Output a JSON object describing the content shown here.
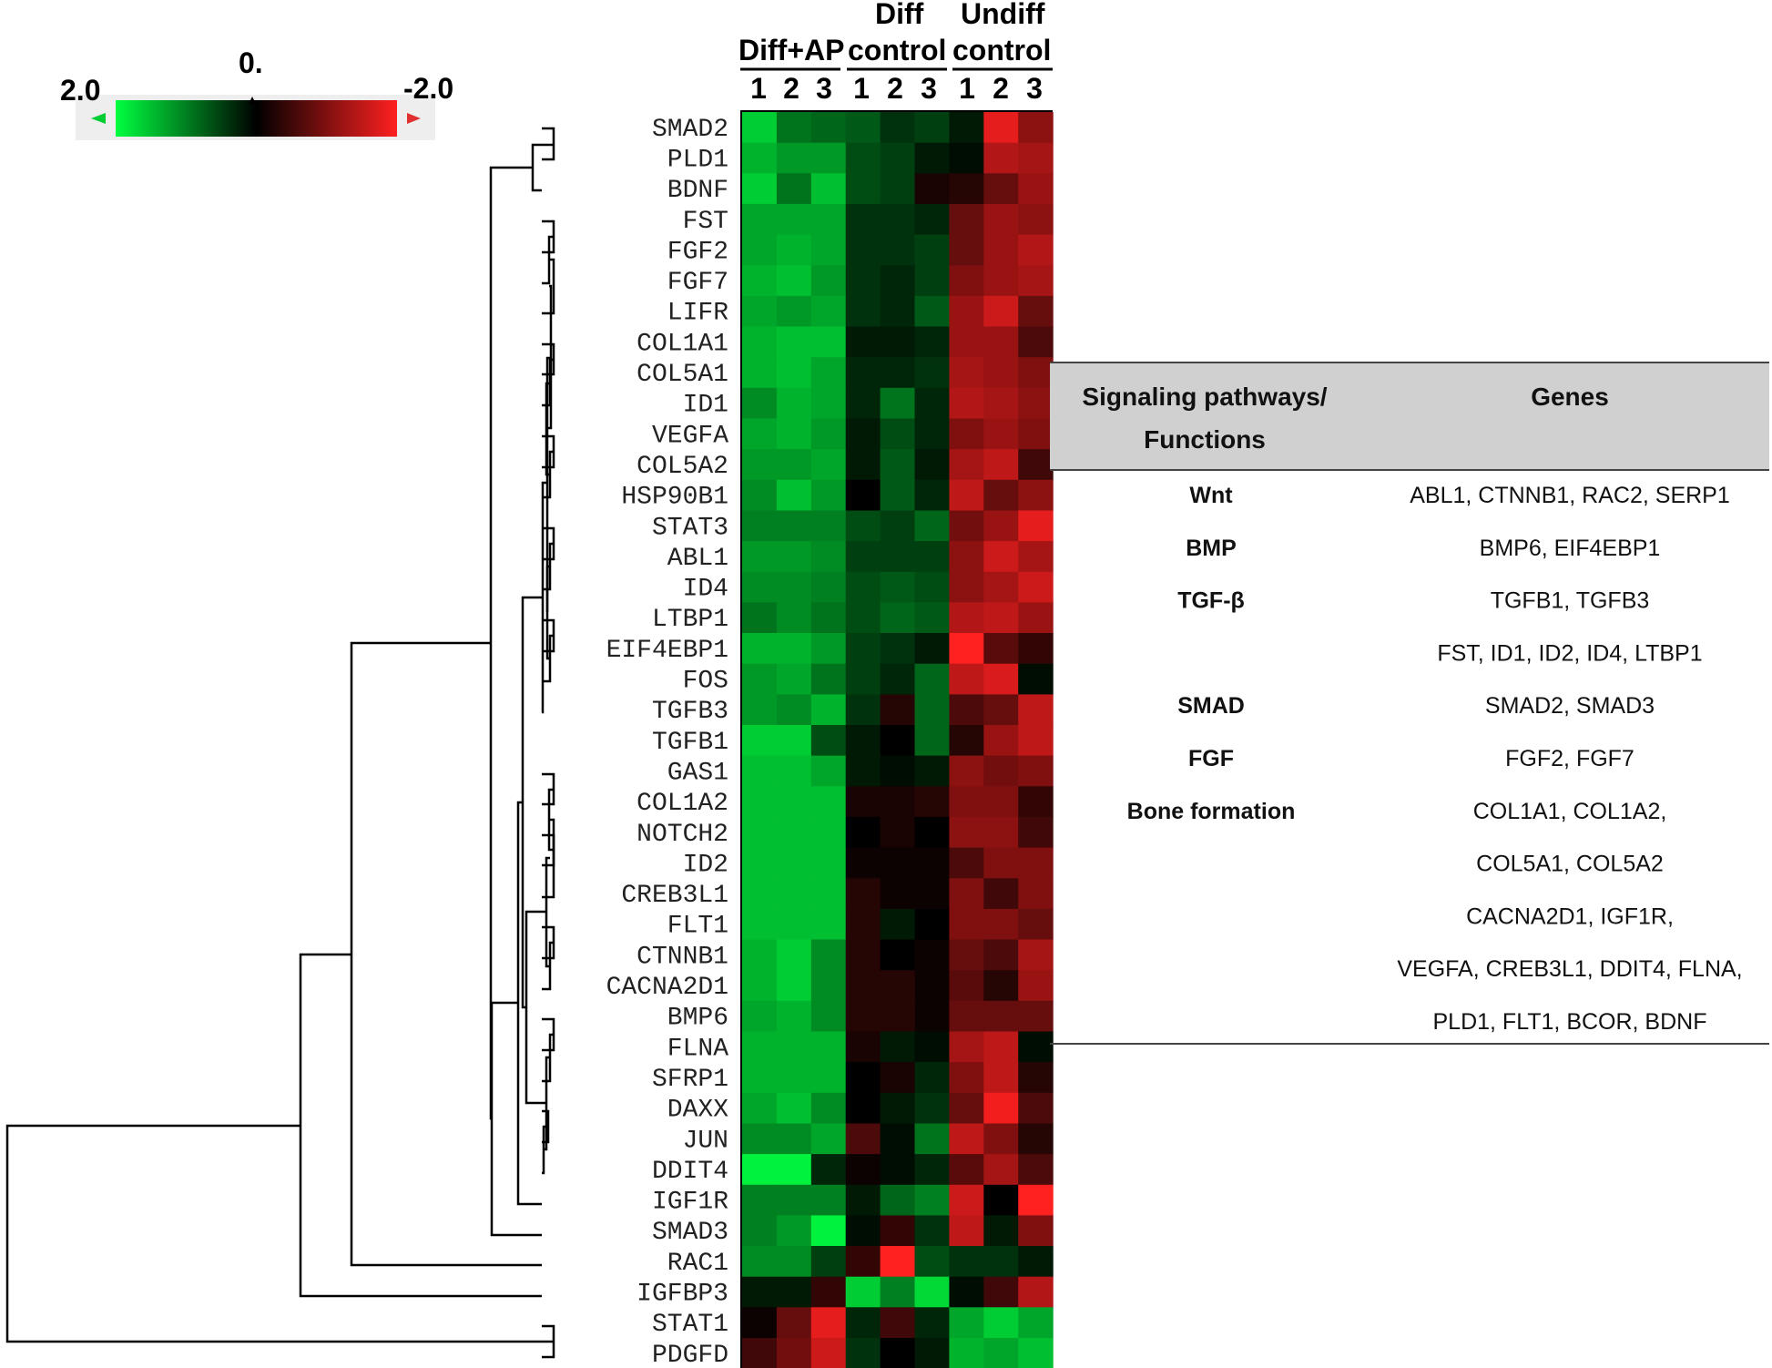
{
  "chart_data": {
    "type": "heatmap",
    "title": "",
    "color_scale": {
      "label_min": "2.0",
      "label_mid": "0.",
      "label_max": "-2.0",
      "low_color": "#00ff40",
      "mid_color": "#000000",
      "high_color": "#ff2020"
    },
    "groups": [
      {
        "name_line1": "",
        "name_line2": "Diff+AP",
        "replicates": [
          "1",
          "2",
          "3"
        ]
      },
      {
        "name_line1": "Diff",
        "name_line2": "control",
        "replicates": [
          "1",
          "2",
          "3"
        ]
      },
      {
        "name_line1": "Undiff",
        "name_line2": "control",
        "replicates": [
          "1",
          "2",
          "3"
        ]
      }
    ],
    "genes": [
      "SMAD2",
      "PLD1",
      "BDNF",
      "FST",
      "FGF2",
      "FGF7",
      "LIFR",
      "COL1A1",
      "COL5A1",
      "ID1",
      "VEGFA",
      "COL5A2",
      "HSP90B1",
      "STAT3",
      "ABL1",
      "ID4",
      "LTBP1",
      "EIF4EBP1",
      "FOS",
      "TGFB3",
      "TGFB1",
      "GAS1",
      "COL1A2",
      "NOTCH2",
      "ID2",
      "CREB3L1",
      "FLT1",
      "CTNNB1",
      "CACNA2D1",
      "BMP6",
      "FLNA",
      "SFRP1",
      "DAXX",
      "JUN",
      "DDIT4",
      "IGF1R",
      "SMAD3",
      "RAC1",
      "IGFBP3",
      "STAT1",
      "PDGFD"
    ],
    "values": [
      [
        1.6,
        0.9,
        0.8,
        0.7,
        0.4,
        0.5,
        0.2,
        -1.8,
        -1.1
      ],
      [
        1.4,
        1.2,
        1.2,
        0.6,
        0.5,
        0.2,
        0.1,
        -1.4,
        -1.3
      ],
      [
        1.6,
        0.9,
        1.5,
        0.6,
        0.5,
        -0.2,
        -0.3,
        -0.8,
        -1.2
      ],
      [
        1.3,
        1.3,
        1.3,
        0.4,
        0.4,
        0.3,
        -0.8,
        -1.2,
        -1.1
      ],
      [
        1.3,
        1.4,
        1.3,
        0.4,
        0.4,
        0.5,
        -0.8,
        -1.2,
        -1.4
      ],
      [
        1.4,
        1.5,
        1.2,
        0.4,
        0.3,
        0.5,
        -1.0,
        -1.2,
        -1.3
      ],
      [
        1.3,
        1.2,
        1.3,
        0.4,
        0.3,
        0.7,
        -1.2,
        -1.6,
        -0.8
      ],
      [
        1.4,
        1.5,
        1.5,
        0.2,
        0.2,
        0.3,
        -1.2,
        -1.2,
        -0.6
      ],
      [
        1.4,
        1.5,
        1.3,
        0.3,
        0.3,
        0.4,
        -1.3,
        -1.2,
        -1.0
      ],
      [
        1.1,
        1.4,
        1.3,
        0.3,
        0.9,
        0.3,
        -1.4,
        -1.3,
        -1.1
      ],
      [
        1.3,
        1.4,
        1.2,
        0.2,
        0.6,
        0.3,
        -1.0,
        -1.2,
        -1.0
      ],
      [
        1.2,
        1.2,
        1.3,
        0.2,
        0.7,
        0.2,
        -1.3,
        -1.5,
        -0.5
      ],
      [
        1.1,
        1.5,
        1.2,
        0.0,
        0.7,
        0.3,
        -1.5,
        -0.8,
        -1.1
      ],
      [
        1.0,
        1.0,
        1.0,
        0.6,
        0.5,
        0.8,
        -0.9,
        -1.2,
        -1.8
      ],
      [
        1.2,
        1.2,
        1.1,
        0.5,
        0.5,
        0.5,
        -1.1,
        -1.6,
        -1.3
      ],
      [
        1.1,
        1.1,
        1.0,
        0.6,
        0.7,
        0.6,
        -1.1,
        -1.3,
        -1.6
      ],
      [
        0.9,
        1.1,
        0.9,
        0.6,
        0.8,
        0.7,
        -1.4,
        -1.5,
        -1.2
      ],
      [
        1.4,
        1.4,
        1.2,
        0.5,
        0.4,
        0.2,
        -2.0,
        -0.7,
        -0.4
      ],
      [
        1.2,
        1.3,
        0.9,
        0.5,
        0.3,
        0.8,
        -1.5,
        -1.7,
        0.1
      ],
      [
        1.2,
        1.1,
        1.4,
        0.4,
        -0.3,
        0.8,
        -0.6,
        -0.8,
        -1.5
      ],
      [
        1.6,
        1.6,
        0.6,
        0.2,
        0.0,
        0.8,
        -0.3,
        -1.2,
        -1.5
      ],
      [
        1.5,
        1.5,
        1.3,
        0.2,
        0.1,
        0.2,
        -1.1,
        -0.9,
        -1.0
      ],
      [
        1.5,
        1.5,
        1.5,
        -0.2,
        -0.2,
        -0.3,
        -1.0,
        -1.0,
        -0.4
      ],
      [
        1.5,
        1.5,
        1.5,
        0.0,
        -0.2,
        0.0,
        -1.1,
        -1.1,
        -0.5
      ],
      [
        1.5,
        1.5,
        1.5,
        -0.1,
        -0.1,
        -0.1,
        -0.6,
        -1.0,
        -1.0
      ],
      [
        1.5,
        1.5,
        1.5,
        -0.3,
        -0.1,
        -0.1,
        -1.0,
        -0.5,
        -1.0
      ],
      [
        1.5,
        1.5,
        1.5,
        -0.3,
        0.2,
        0.0,
        -1.0,
        -1.0,
        -0.8
      ],
      [
        1.4,
        1.6,
        1.1,
        -0.3,
        0.0,
        -0.1,
        -0.8,
        -0.6,
        -1.3
      ],
      [
        1.4,
        1.6,
        1.1,
        -0.3,
        -0.3,
        -0.1,
        -0.7,
        -0.3,
        -1.2
      ],
      [
        1.3,
        1.4,
        1.1,
        -0.3,
        -0.3,
        -0.1,
        -0.8,
        -0.8,
        -0.8
      ],
      [
        1.4,
        1.4,
        1.4,
        -0.2,
        0.2,
        0.1,
        -1.3,
        -1.5,
        0.1
      ],
      [
        1.4,
        1.4,
        1.4,
        0.0,
        -0.2,
        0.3,
        -1.0,
        -1.5,
        -0.3
      ],
      [
        1.3,
        1.5,
        1.1,
        0.0,
        0.2,
        0.4,
        -0.8,
        -1.9,
        -0.6
      ],
      [
        1.1,
        1.1,
        1.3,
        -0.6,
        0.1,
        0.9,
        -1.5,
        -1.0,
        -0.3
      ],
      [
        1.9,
        1.9,
        0.3,
        -0.1,
        0.1,
        0.3,
        -0.7,
        -1.3,
        -0.6
      ],
      [
        1.0,
        1.0,
        1.0,
        0.2,
        0.8,
        1.0,
        -1.6,
        0.0,
        -2.0
      ],
      [
        1.0,
        1.2,
        1.9,
        0.1,
        -0.4,
        0.4,
        -1.5,
        0.2,
        -1.0
      ],
      [
        1.1,
        1.1,
        0.5,
        -0.4,
        -2.0,
        0.6,
        0.4,
        0.4,
        0.2
      ],
      [
        0.2,
        0.2,
        -0.4,
        1.6,
        1.0,
        1.7,
        0.1,
        -0.5,
        -1.4
      ],
      [
        -0.1,
        -0.8,
        -1.8,
        0.3,
        -0.5,
        0.3,
        1.3,
        1.6,
        1.3
      ],
      [
        -0.5,
        -0.9,
        -1.6,
        0.4,
        0.0,
        0.2,
        1.4,
        1.3,
        1.5
      ]
    ]
  },
  "table": {
    "header_col1_line1": "Signaling pathways/",
    "header_col1_line2": "Functions",
    "header_col2": "Genes",
    "rows": [
      {
        "pathway": "Wnt",
        "genes": "ABL1, CTNNB1, RAC2, SERP1"
      },
      {
        "pathway": "BMP",
        "genes": "BMP6, EIF4EBP1"
      },
      {
        "pathway": "TGF-β",
        "genes": "TGFB1, TGFB3"
      },
      {
        "pathway": "",
        "genes": "FST, ID1, ID2, ID4, LTBP1"
      },
      {
        "pathway": "SMAD",
        "genes": "SMAD2, SMAD3"
      },
      {
        "pathway": "FGF",
        "genes": "FGF2, FGF7"
      },
      {
        "pathway": "Bone formation",
        "genes": "COL1A1, COL1A2,"
      },
      {
        "pathway": "",
        "genes": "COL5A1, COL5A2"
      },
      {
        "pathway": "",
        "genes": "CACNA2D1, IGF1R,"
      },
      {
        "pathway": "",
        "genes": "VEGFA, CREB3L1, DDIT4, FLNA,"
      },
      {
        "pathway": "",
        "genes": "PLD1, FLT1, BCOR, BDNF"
      }
    ]
  }
}
